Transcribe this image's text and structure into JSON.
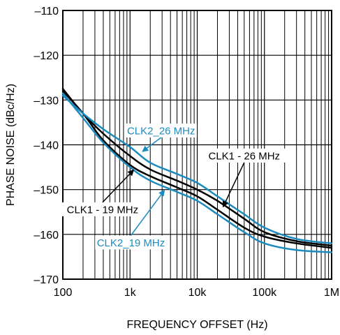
{
  "chart_data": {
    "type": "line",
    "title": "",
    "xlabel": "FREQUENCY OFFSET (Hz)",
    "ylabel": "PHASE NOISE (dBc/Hz)",
    "x_scale": "log",
    "xlim": [
      100,
      1000000
    ],
    "ylim": [
      -170,
      -110
    ],
    "grid": true,
    "x_ticks": [
      {
        "value": 100,
        "label": "100"
      },
      {
        "value": 1000,
        "label": "1k"
      },
      {
        "value": 10000,
        "label": "10k"
      },
      {
        "value": 100000,
        "label": "100k"
      },
      {
        "value": 1000000,
        "label": "1M"
      }
    ],
    "y_ticks": [
      {
        "value": -110,
        "label": "–110"
      },
      {
        "value": -120,
        "label": "–120"
      },
      {
        "value": -130,
        "label": "–130"
      },
      {
        "value": -140,
        "label": "–140"
      },
      {
        "value": -150,
        "label": "–150"
      },
      {
        "value": -160,
        "label": "–160"
      },
      {
        "value": -170,
        "label": "–170"
      }
    ],
    "colors": {
      "black": "#000000",
      "blue": "#1b8bbf"
    },
    "series": [
      {
        "name": "CLK1 - 19 MHz",
        "color": "#000000",
        "x": [
          100,
          200,
          400,
          1000,
          2000,
          5000,
          10000,
          20000,
          50000,
          100000,
          300000,
          1000000
        ],
        "y": [
          -128,
          -133,
          -139,
          -144.5,
          -147,
          -149.5,
          -151.5,
          -154.5,
          -158.5,
          -160.5,
          -162,
          -163
        ]
      },
      {
        "name": "CLK1 - 26 MHz",
        "color": "#000000",
        "x": [
          100,
          200,
          400,
          1000,
          2000,
          5000,
          10000,
          20000,
          50000,
          100000,
          300000,
          1000000
        ],
        "y": [
          -127.5,
          -133,
          -137.5,
          -142.5,
          -145.5,
          -148,
          -150,
          -152.5,
          -156.5,
          -159.5,
          -161.5,
          -162.5
        ]
      },
      {
        "name": "CLK2_19 MHz",
        "color": "#1b8bbf",
        "x": [
          100,
          200,
          400,
          1000,
          2000,
          5000,
          10000,
          20000,
          50000,
          100000,
          300000,
          1000000
        ],
        "y": [
          -128.5,
          -134,
          -139.5,
          -145,
          -148,
          -150.5,
          -152.5,
          -155.5,
          -159.5,
          -162,
          -163.5,
          -164
        ]
      },
      {
        "name": "CLK2_26 MHz",
        "color": "#1b8bbf",
        "x": [
          100,
          200,
          400,
          1000,
          2000,
          5000,
          10000,
          20000,
          50000,
          100000,
          300000,
          1000000
        ],
        "y": [
          -129,
          -133,
          -136.5,
          -140.5,
          -144,
          -146.5,
          -148.5,
          -151.5,
          -155.5,
          -158.5,
          -161,
          -162
        ]
      }
    ],
    "annotations": [
      {
        "text": "CLK2_26 MHz",
        "color": "#1b8bbf",
        "label_x": 2900,
        "label_y": -136.8,
        "target_x": 1500,
        "target_y": -141.6
      },
      {
        "text": "CLK1 - 26 MHz",
        "color": "#000000",
        "label_x": 50000,
        "label_y": -142.4,
        "target_x": 24000,
        "target_y": -154
      },
      {
        "text": "CLK1 - 19 MHz",
        "color": "#000000",
        "label_x": 390,
        "label_y": -154.4,
        "target_x": 1150,
        "target_y": -145.5
      },
      {
        "text": "CLK2_19 MHz",
        "color": "#1b8bbf",
        "label_x": 1030,
        "label_y": -161.8,
        "target_x": 3300,
        "target_y": -150
      }
    ]
  }
}
